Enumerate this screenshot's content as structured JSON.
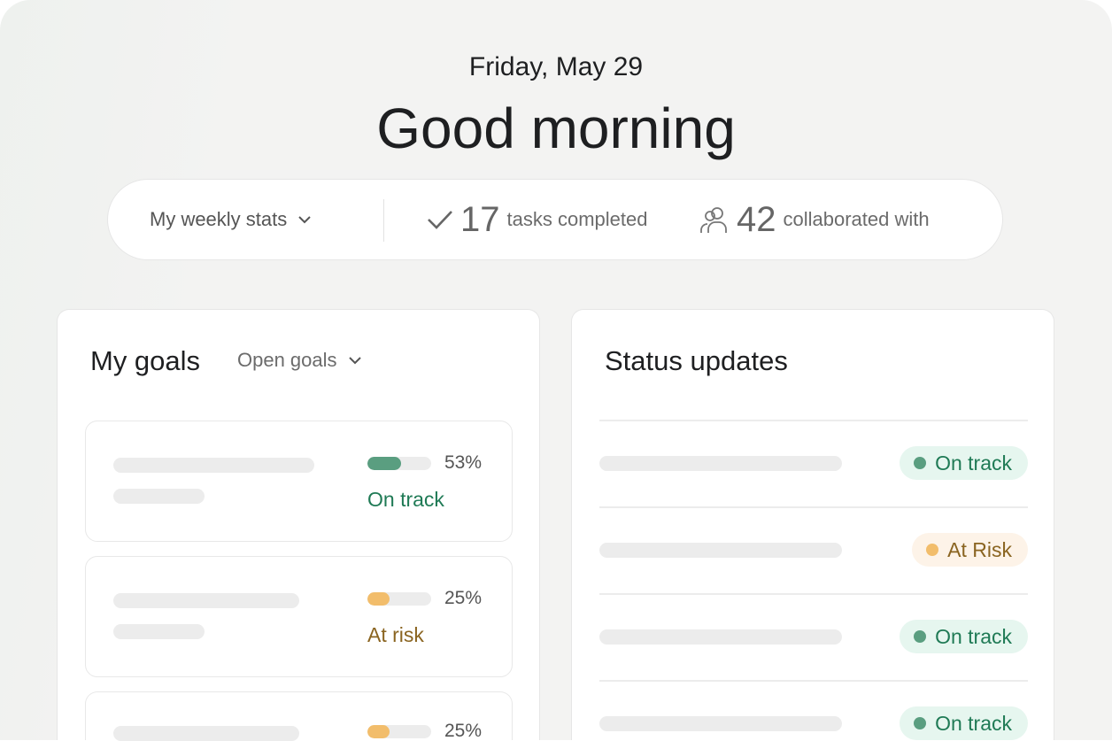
{
  "header": {
    "date": "Friday, May 29",
    "greeting": "Good morning"
  },
  "stats": {
    "selector_label": "My weekly stats",
    "tasks_count": "17",
    "tasks_label": "tasks completed",
    "collab_count": "42",
    "collab_label": "collaborated with"
  },
  "goals": {
    "title": "My goals",
    "filter_label": "Open goals",
    "items": [
      {
        "progress_percent": 53,
        "percent_label": "53%",
        "status": "On track",
        "color": "#5a9e80",
        "text_color": "#1f7a55"
      },
      {
        "progress_percent": 25,
        "percent_label": "25%",
        "status": "At risk",
        "color": "#f2bd6b",
        "text_color": "#8a6420"
      },
      {
        "progress_percent": 25,
        "percent_label": "25%",
        "status": "",
        "color": "#f2bd6b",
        "text_color": "#8a6420"
      }
    ]
  },
  "status_updates": {
    "title": "Status updates",
    "items": [
      {
        "status": "On track",
        "dot": "#5a9e80",
        "bg": "#e6f6ef",
        "text_color": "#1f7a55"
      },
      {
        "status": "At Risk",
        "dot": "#f2bd6b",
        "bg": "#fdf3e8",
        "text_color": "#8a6420"
      },
      {
        "status": "On track",
        "dot": "#5a9e80",
        "bg": "#e6f6ef",
        "text_color": "#1f7a55"
      },
      {
        "status": "On track",
        "dot": "#5a9e80",
        "bg": "#e6f6ef",
        "text_color": "#1f7a55"
      }
    ]
  }
}
